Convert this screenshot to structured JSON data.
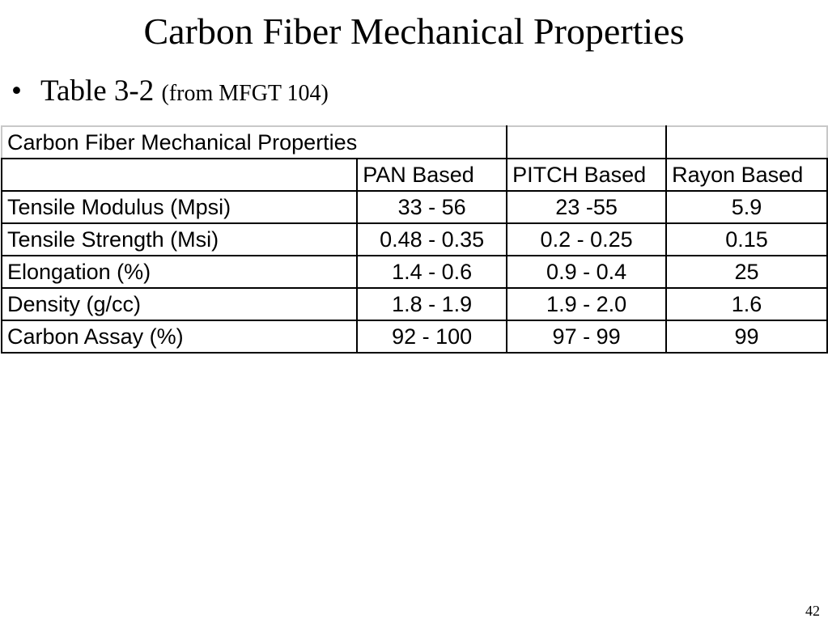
{
  "slide": {
    "title": "Carbon Fiber Mechanical Properties",
    "bullet_main": "Table 3-2",
    "bullet_small": "(from MFGT 104)",
    "page_number": "42"
  },
  "table": {
    "caption": "Carbon Fiber Mechanical Properties",
    "columns": [
      "",
      "PAN Based",
      "PITCH Based",
      "Rayon Based"
    ],
    "rows": [
      {
        "label": "Tensile Modulus (Mpsi)",
        "values": [
          "33 - 56",
          "23 -55",
          "5.9"
        ]
      },
      {
        "label": "Tensile Strength (Msi)",
        "values": [
          "0.48 - 0.35",
          "0.2 - 0.25",
          "0.15"
        ]
      },
      {
        "label": "Elongation (%)",
        "values": [
          "1.4 - 0.6",
          "0.9 - 0.4",
          "25"
        ]
      },
      {
        "label": "Density (g/cc)",
        "values": [
          "1.8 - 1.9",
          "1.9 - 2.0",
          "1.6"
        ]
      },
      {
        "label": "Carbon Assay (%)",
        "values": [
          "92 - 100",
          "97 - 99",
          "99"
        ]
      }
    ]
  }
}
